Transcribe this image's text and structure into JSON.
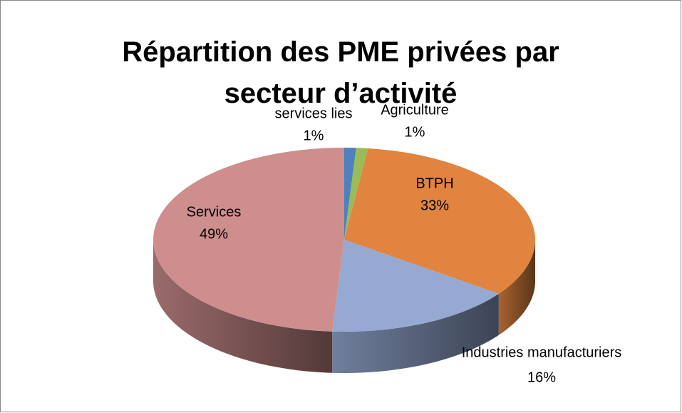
{
  "chart_data": {
    "type": "pie3d",
    "title": "Répartition des PME privées par secteur d’activité",
    "categories": [
      "services lies",
      "Agriculture",
      "BTPH",
      "Industries manufacturiers",
      "Services"
    ],
    "values": [
      1,
      1,
      33,
      16,
      49
    ],
    "value_labels": [
      "1%",
      "1%",
      "33%",
      "16%",
      "49%"
    ],
    "colors": [
      "#4f81bd",
      "#9bbb59",
      "#e0843f",
      "#95a9d2",
      "#cf8e8e"
    ]
  }
}
